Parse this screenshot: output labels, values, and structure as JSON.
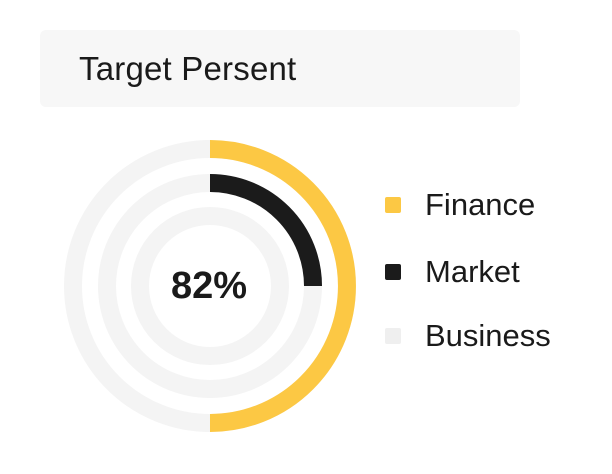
{
  "header": {
    "title": "Target Persent"
  },
  "center": {
    "label": "82%"
  },
  "chart_data": {
    "type": "radial-bar",
    "categories": [
      "Finance",
      "Market",
      "Business"
    ],
    "values": [
      50,
      25,
      0
    ],
    "max": 100,
    "colors": [
      "#fcc844",
      "#1b1b1b",
      "#efefef"
    ],
    "track_color": "#f4f4f4",
    "center_label": "82%",
    "legend_position": "right"
  },
  "legend": {
    "items": [
      {
        "label": "Finance",
        "color": "#fcc844"
      },
      {
        "label": "Market",
        "color": "#1b1b1b"
      },
      {
        "label": "Business",
        "color": "#efefef"
      }
    ]
  }
}
